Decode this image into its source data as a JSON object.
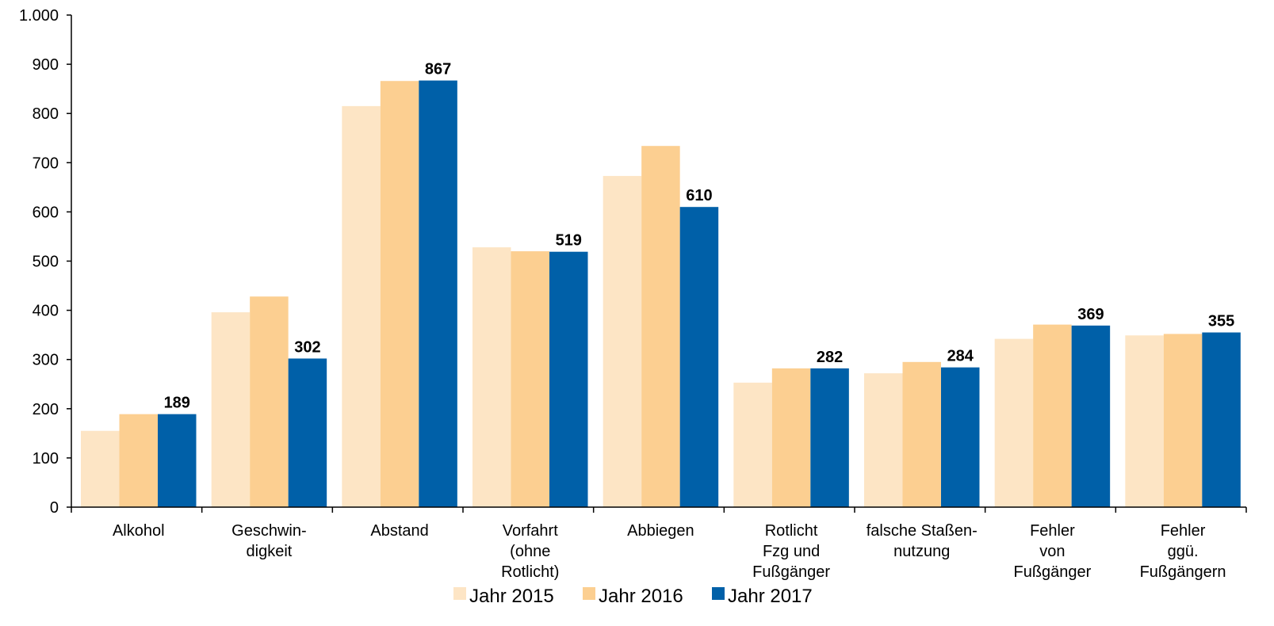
{
  "chart_data": {
    "type": "bar",
    "title": "",
    "xlabel": "",
    "ylabel": "",
    "ylim": [
      0,
      1000
    ],
    "yticks": [
      0,
      100,
      200,
      300,
      400,
      500,
      600,
      700,
      800,
      900,
      1000
    ],
    "ytick_labels": [
      "0",
      "100",
      "200",
      "300",
      "400",
      "500",
      "600",
      "700",
      "800",
      "900",
      "1.000"
    ],
    "grid": false,
    "legend_position": "bottom",
    "categories": [
      [
        "Alkohol"
      ],
      [
        "Geschwin-",
        "digkeit"
      ],
      [
        "Abstand"
      ],
      [
        "Vorfahrt",
        "(ohne",
        "Rotlicht)"
      ],
      [
        "Abbiegen"
      ],
      [
        "Rotlicht",
        "Fzg und",
        "Fußgänger"
      ],
      [
        "falsche Staßen-",
        "nutzung"
      ],
      [
        "Fehler",
        "von",
        "Fußgänger"
      ],
      [
        "Fehler",
        "ggü.",
        "Fußgängern"
      ]
    ],
    "series": [
      {
        "name": "Jahr 2015",
        "color": "#fde5c5",
        "values": [
          155,
          396,
          815,
          528,
          673,
          253,
          272,
          342,
          349
        ],
        "labels": []
      },
      {
        "name": "Jahr 2016",
        "color": "#fccf91",
        "values": [
          189,
          428,
          866,
          520,
          734,
          282,
          295,
          371,
          352
        ],
        "labels": []
      },
      {
        "name": "Jahr 2017",
        "color": "#0060a8",
        "values": [
          189,
          302,
          867,
          519,
          610,
          282,
          284,
          369,
          355
        ],
        "labels": [
          "189",
          "302",
          "867",
          "519",
          "610",
          "282",
          "284",
          "369",
          "355"
        ]
      }
    ]
  }
}
